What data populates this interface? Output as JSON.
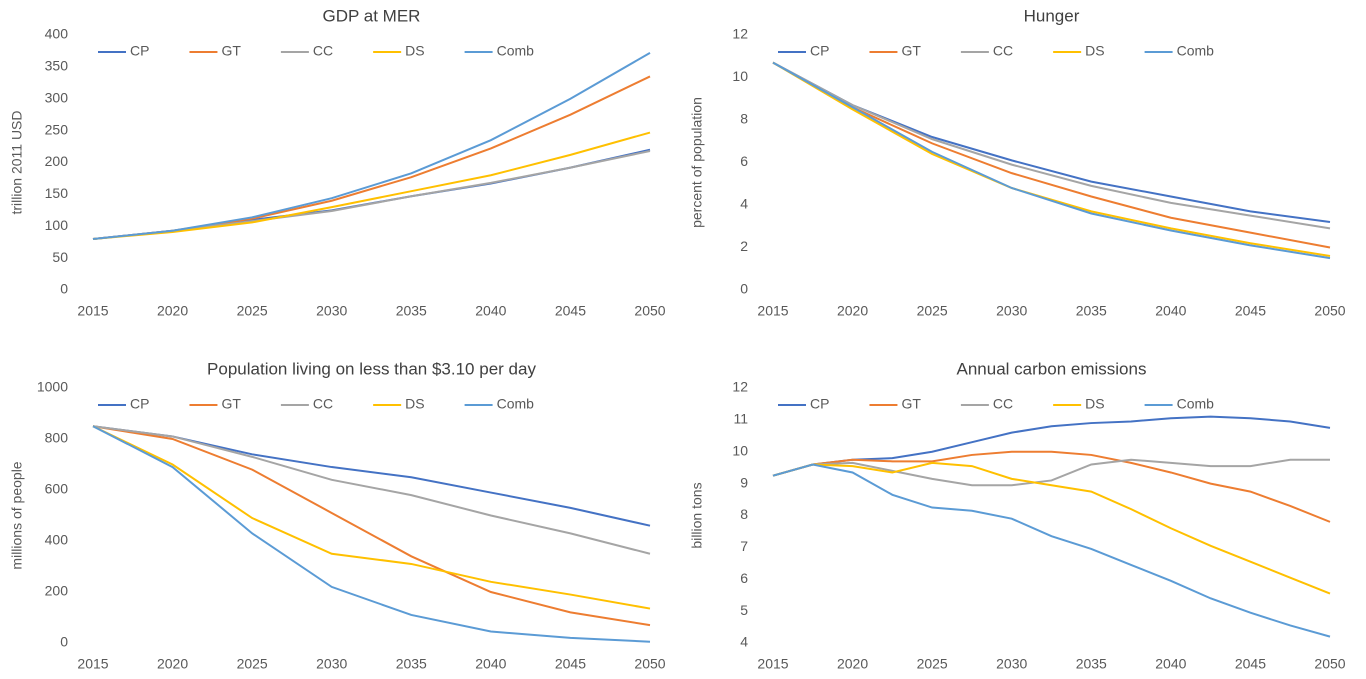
{
  "chart_data": [
    {
      "type": "line",
      "title": "GDP at MER",
      "y_label": "trillion 2011 USD",
      "x": [
        2015,
        2020,
        2025,
        2030,
        2035,
        2040,
        2045,
        2050
      ],
      "xlim": [
        2015,
        2050
      ],
      "xticks": [
        2015,
        2020,
        2025,
        2030,
        2035,
        2040,
        2045,
        2050
      ],
      "ylim": [
        0,
        400
      ],
      "yticks": [
        0,
        50,
        100,
        150,
        200,
        250,
        300,
        350,
        400
      ],
      "legend": "top-left",
      "series": [
        {
          "name": "CP",
          "color": "#4472c4",
          "values": [
            80,
            93,
            110,
            125,
            147,
            167,
            192,
            220
          ]
        },
        {
          "name": "GT",
          "color": "#ed7d31",
          "values": [
            80,
            93,
            112,
            140,
            177,
            222,
            275,
            335
          ]
        },
        {
          "name": "CC",
          "color": "#a5a5a5",
          "values": [
            80,
            93,
            108,
            124,
            147,
            168,
            192,
            218
          ]
        },
        {
          "name": "DS",
          "color": "#ffc000",
          "values": [
            80,
            91,
            106,
            130,
            155,
            180,
            212,
            247
          ]
        },
        {
          "name": "Comb",
          "color": "#5b9bd5",
          "values": [
            80,
            93,
            114,
            144,
            183,
            235,
            300,
            372
          ]
        }
      ]
    },
    {
      "type": "line",
      "title": "Hunger",
      "y_label": "percent of population",
      "x": [
        2015,
        2020,
        2025,
        2030,
        2035,
        2040,
        2045,
        2050
      ],
      "xlim": [
        2015,
        2050
      ],
      "xticks": [
        2015,
        2020,
        2025,
        2030,
        2035,
        2040,
        2045,
        2050
      ],
      "ylim": [
        0,
        12
      ],
      "yticks": [
        0,
        2,
        4,
        6,
        8,
        10,
        12
      ],
      "legend": "top-left",
      "series": [
        {
          "name": "CP",
          "color": "#4472c4",
          "values": [
            10.7,
            8.7,
            7.2,
            6.1,
            5.1,
            4.4,
            3.7,
            3.2
          ]
        },
        {
          "name": "GT",
          "color": "#ed7d31",
          "values": [
            10.7,
            8.6,
            6.9,
            5.5,
            4.4,
            3.4,
            2.7,
            2.0
          ]
        },
        {
          "name": "CC",
          "color": "#a5a5a5",
          "values": [
            10.7,
            8.7,
            7.1,
            5.9,
            4.9,
            4.1,
            3.5,
            2.9
          ]
        },
        {
          "name": "DS",
          "color": "#ffc000",
          "values": [
            10.7,
            8.5,
            6.4,
            4.8,
            3.7,
            2.9,
            2.2,
            1.6
          ]
        },
        {
          "name": "Comb",
          "color": "#5b9bd5",
          "values": [
            10.7,
            8.6,
            6.5,
            4.8,
            3.6,
            2.8,
            2.1,
            1.5
          ]
        }
      ]
    },
    {
      "type": "line",
      "title": "Population living on less than $3.10 per day",
      "y_label": "millions of people",
      "x": [
        2015,
        2020,
        2025,
        2030,
        2035,
        2040,
        2045,
        2050
      ],
      "xlim": [
        2015,
        2050
      ],
      "xticks": [
        2015,
        2020,
        2025,
        2030,
        2035,
        2040,
        2045,
        2050
      ],
      "ylim": [
        0,
        1000
      ],
      "yticks": [
        0,
        200,
        400,
        600,
        800,
        1000
      ],
      "legend": "top-left",
      "series": [
        {
          "name": "CP",
          "color": "#4472c4",
          "values": [
            850,
            810,
            740,
            690,
            650,
            590,
            530,
            460
          ]
        },
        {
          "name": "GT",
          "color": "#ed7d31",
          "values": [
            850,
            800,
            680,
            510,
            340,
            200,
            120,
            70
          ]
        },
        {
          "name": "CC",
          "color": "#a5a5a5",
          "values": [
            850,
            810,
            730,
            640,
            580,
            500,
            430,
            350
          ]
        },
        {
          "name": "DS",
          "color": "#ffc000",
          "values": [
            850,
            700,
            490,
            350,
            310,
            240,
            190,
            135
          ]
        },
        {
          "name": "Comb",
          "color": "#5b9bd5",
          "values": [
            850,
            690,
            430,
            220,
            110,
            45,
            20,
            5
          ]
        }
      ]
    },
    {
      "type": "line",
      "title": "Annual carbon emissions",
      "y_label": "billion tons",
      "x": [
        2015,
        2017.5,
        2020,
        2022.5,
        2025,
        2027.5,
        2030,
        2032.5,
        2035,
        2037.5,
        2040,
        2042.5,
        2045,
        2047.5,
        2050
      ],
      "xlim": [
        2015,
        2050
      ],
      "xticks": [
        2015,
        2020,
        2025,
        2030,
        2035,
        2040,
        2045,
        2050
      ],
      "ylim": [
        4,
        12
      ],
      "yticks": [
        4,
        5,
        6,
        7,
        8,
        9,
        10,
        11,
        12
      ],
      "legend": "top-left",
      "series": [
        {
          "name": "CP",
          "color": "#4472c4",
          "values": [
            9.25,
            9.6,
            9.75,
            9.8,
            10.0,
            10.3,
            10.6,
            10.8,
            10.9,
            10.95,
            11.05,
            11.1,
            11.05,
            10.95,
            10.75
          ]
        },
        {
          "name": "GT",
          "color": "#ed7d31",
          "values": [
            9.25,
            9.6,
            9.75,
            9.7,
            9.7,
            9.9,
            10.0,
            10.0,
            9.9,
            9.65,
            9.35,
            9.0,
            8.75,
            8.3,
            7.8
          ]
        },
        {
          "name": "CC",
          "color": "#a5a5a5",
          "values": [
            9.25,
            9.6,
            9.65,
            9.4,
            9.15,
            8.95,
            8.95,
            9.1,
            9.6,
            9.75,
            9.65,
            9.55,
            9.55,
            9.75,
            9.75
          ]
        },
        {
          "name": "DS",
          "color": "#ffc000",
          "values": [
            9.25,
            9.6,
            9.55,
            9.35,
            9.65,
            9.55,
            9.15,
            8.95,
            8.75,
            8.2,
            7.6,
            7.05,
            6.55,
            6.05,
            5.55
          ]
        },
        {
          "name": "Comb",
          "color": "#5b9bd5",
          "values": [
            9.25,
            9.6,
            9.35,
            8.65,
            8.25,
            8.15,
            7.9,
            7.35,
            6.95,
            6.45,
            5.95,
            5.4,
            4.95,
            4.55,
            4.2
          ]
        }
      ]
    }
  ]
}
